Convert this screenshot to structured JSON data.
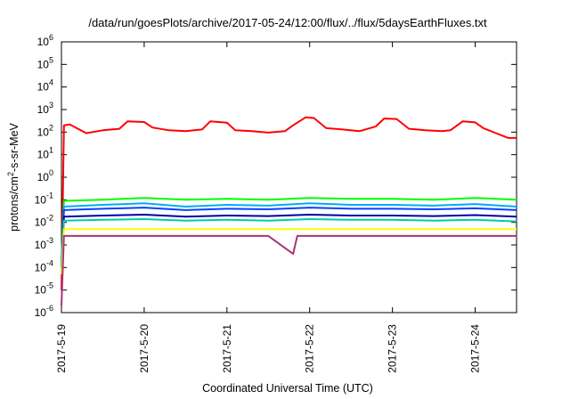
{
  "chart_data": {
    "type": "line",
    "title": "/data/run/goesPlots/archive/2017-05-24/12:00/flux/../flux/5daysEarthFluxes.txt",
    "xlabel": "Coordinated Universal Time (UTC)",
    "ylabel": {
      "prefix": "protons/cm",
      "superscript": "2",
      "suffix": "-s-sr-MeV"
    },
    "y_scale": "log",
    "ylim": [
      1e-06,
      1000000.0
    ],
    "y_ticks": [
      {
        "exp": "-6",
        "value": 1e-06
      },
      {
        "exp": "-5",
        "value": 1e-05
      },
      {
        "exp": "-4",
        "value": 0.0001
      },
      {
        "exp": "-3",
        "value": 0.001
      },
      {
        "exp": "-2",
        "value": 0.01
      },
      {
        "exp": "-1",
        "value": 0.1
      },
      {
        "exp": "0",
        "value": 1
      },
      {
        "exp": "1",
        "value": 10
      },
      {
        "exp": "2",
        "value": 100
      },
      {
        "exp": "3",
        "value": 1000
      },
      {
        "exp": "4",
        "value": 10000
      },
      {
        "exp": "5",
        "value": 100000
      },
      {
        "exp": "6",
        "value": 1000000
      }
    ],
    "x_ticks": [
      "2017-5-19",
      "2017-5-20",
      "2017-5-21",
      "2017-5-22",
      "2017-5-23",
      "2017-5-24"
    ],
    "xlim": [
      "2017-05-19T00:00",
      "2017-05-24T12:00"
    ],
    "grid": false,
    "legend": "none",
    "series": [
      {
        "color": "#ff0000",
        "values": [
          [
            0,
            1e-05
          ],
          [
            0.03,
            200
          ],
          [
            0.1,
            220
          ],
          [
            0.3,
            90
          ],
          [
            0.5,
            120
          ],
          [
            0.7,
            140
          ],
          [
            0.8,
            300
          ],
          [
            1.0,
            280
          ],
          [
            1.1,
            160
          ],
          [
            1.3,
            120
          ],
          [
            1.5,
            110
          ],
          [
            1.7,
            130
          ],
          [
            1.8,
            300
          ],
          [
            2.0,
            260
          ],
          [
            2.1,
            120
          ],
          [
            2.3,
            110
          ],
          [
            2.5,
            95
          ],
          [
            2.7,
            110
          ],
          [
            2.8,
            200
          ],
          [
            2.95,
            450
          ],
          [
            3.05,
            420
          ],
          [
            3.2,
            150
          ],
          [
            3.4,
            130
          ],
          [
            3.6,
            110
          ],
          [
            3.8,
            180
          ],
          [
            3.9,
            400
          ],
          [
            4.05,
            380
          ],
          [
            4.2,
            140
          ],
          [
            4.4,
            120
          ],
          [
            4.6,
            110
          ],
          [
            4.7,
            120
          ],
          [
            4.85,
            300
          ],
          [
            5.0,
            270
          ],
          [
            5.1,
            150
          ],
          [
            5.25,
            90
          ],
          [
            5.4,
            55
          ],
          [
            5.5,
            55
          ]
        ]
      },
      {
        "color": "#00ff00",
        "values": [
          [
            0,
            0.0002
          ],
          [
            0.03,
            0.09
          ],
          [
            0.5,
            0.1
          ],
          [
            1.0,
            0.12
          ],
          [
            1.5,
            0.1
          ],
          [
            2.0,
            0.11
          ],
          [
            2.5,
            0.1
          ],
          [
            3.0,
            0.12
          ],
          [
            3.5,
            0.11
          ],
          [
            4.0,
            0.11
          ],
          [
            4.5,
            0.1
          ],
          [
            5.0,
            0.12
          ],
          [
            5.5,
            0.1
          ]
        ]
      },
      {
        "color": "#00aaff",
        "values": [
          [
            0,
            0.0001
          ],
          [
            0.03,
            0.05
          ],
          [
            0.5,
            0.06
          ],
          [
            1.0,
            0.07
          ],
          [
            1.5,
            0.05
          ],
          [
            2.0,
            0.06
          ],
          [
            2.5,
            0.055
          ],
          [
            3.0,
            0.07
          ],
          [
            3.5,
            0.06
          ],
          [
            4.0,
            0.06
          ],
          [
            4.5,
            0.055
          ],
          [
            5.0,
            0.065
          ],
          [
            5.5,
            0.05
          ]
        ]
      },
      {
        "color": "#0044ff",
        "values": [
          [
            0,
            0.0001
          ],
          [
            0.03,
            0.035
          ],
          [
            0.5,
            0.04
          ],
          [
            1.0,
            0.045
          ],
          [
            1.5,
            0.035
          ],
          [
            2.0,
            0.04
          ],
          [
            2.5,
            0.038
          ],
          [
            3.0,
            0.045
          ],
          [
            3.5,
            0.04
          ],
          [
            4.0,
            0.04
          ],
          [
            4.5,
            0.038
          ],
          [
            5.0,
            0.042
          ],
          [
            5.5,
            0.035
          ]
        ]
      },
      {
        "color": "#0000aa",
        "values": [
          [
            0,
            5e-05
          ],
          [
            0.03,
            0.018
          ],
          [
            0.5,
            0.02
          ],
          [
            1.0,
            0.022
          ],
          [
            1.5,
            0.018
          ],
          [
            2.0,
            0.02
          ],
          [
            2.5,
            0.019
          ],
          [
            3.0,
            0.022
          ],
          [
            3.5,
            0.02
          ],
          [
            4.0,
            0.02
          ],
          [
            4.5,
            0.019
          ],
          [
            5.0,
            0.021
          ],
          [
            5.5,
            0.018
          ]
        ]
      },
      {
        "color": "#00ccaa",
        "values": [
          [
            0,
            5e-05
          ],
          [
            0.03,
            0.012
          ],
          [
            0.5,
            0.013
          ],
          [
            1.0,
            0.014
          ],
          [
            1.5,
            0.012
          ],
          [
            2.0,
            0.013
          ],
          [
            2.5,
            0.012
          ],
          [
            3.0,
            0.014
          ],
          [
            3.5,
            0.013
          ],
          [
            4.0,
            0.013
          ],
          [
            4.5,
            0.012
          ],
          [
            5.0,
            0.013
          ],
          [
            5.5,
            0.011
          ]
        ]
      },
      {
        "color": "#ffff00",
        "values": [
          [
            0,
            5e-05
          ],
          [
            0.03,
            0.005
          ],
          [
            0.5,
            0.005
          ],
          [
            1.0,
            0.005
          ],
          [
            1.5,
            0.005
          ],
          [
            2.0,
            0.005
          ],
          [
            2.5,
            0.005
          ],
          [
            3.0,
            0.005
          ],
          [
            3.5,
            0.005
          ],
          [
            4.0,
            0.005
          ],
          [
            4.5,
            0.005
          ],
          [
            5.0,
            0.005
          ],
          [
            5.5,
            0.005
          ]
        ]
      },
      {
        "color": "#aa3377",
        "values": [
          [
            0,
            2e-06
          ],
          [
            0.03,
            0.0025
          ],
          [
            0.5,
            0.0025
          ],
          [
            1.0,
            0.0025
          ],
          [
            1.5,
            0.0025
          ],
          [
            2.0,
            0.0025
          ],
          [
            2.5,
            0.0025
          ],
          [
            2.8,
            0.0004
          ],
          [
            2.85,
            0.0025
          ],
          [
            3.0,
            0.0025
          ],
          [
            3.5,
            0.0025
          ],
          [
            4.0,
            0.0025
          ],
          [
            4.5,
            0.0025
          ],
          [
            5.0,
            0.0025
          ],
          [
            5.5,
            0.0025
          ]
        ]
      }
    ]
  }
}
